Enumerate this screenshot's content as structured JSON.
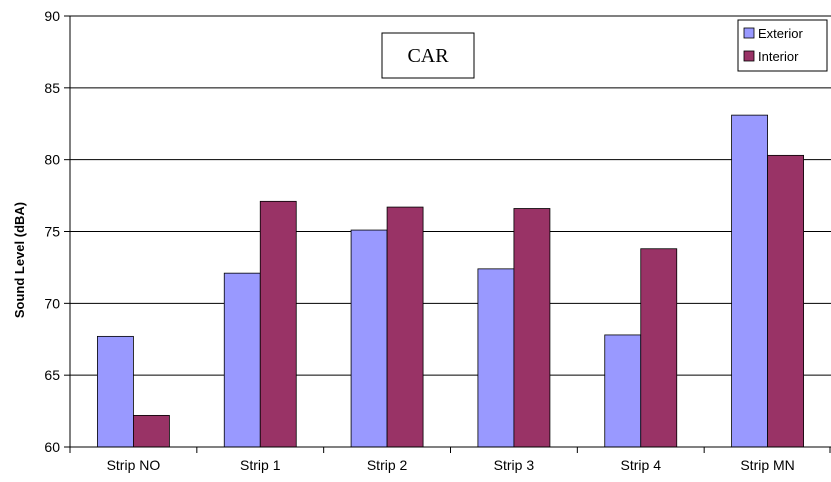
{
  "chart_data": {
    "type": "bar",
    "title": "CAR",
    "xlabel": "",
    "ylabel": "Sound Level (dBA)",
    "ylim": [
      60,
      90
    ],
    "yticks": [
      60,
      65,
      70,
      75,
      80,
      85,
      90
    ],
    "grid": true,
    "legend_position": "top-right",
    "categories": [
      "Strip NO",
      "Strip 1",
      "Strip 2",
      "Strip 3",
      "Strip 4",
      "Strip MN"
    ],
    "series": [
      {
        "name": "Exterior",
        "color": "#9999ff",
        "values": [
          67.7,
          72.1,
          75.1,
          72.4,
          67.8,
          83.1
        ]
      },
      {
        "name": "Interior",
        "color": "#993366",
        "values": [
          62.2,
          77.1,
          76.7,
          76.6,
          73.8,
          80.3
        ]
      }
    ]
  }
}
